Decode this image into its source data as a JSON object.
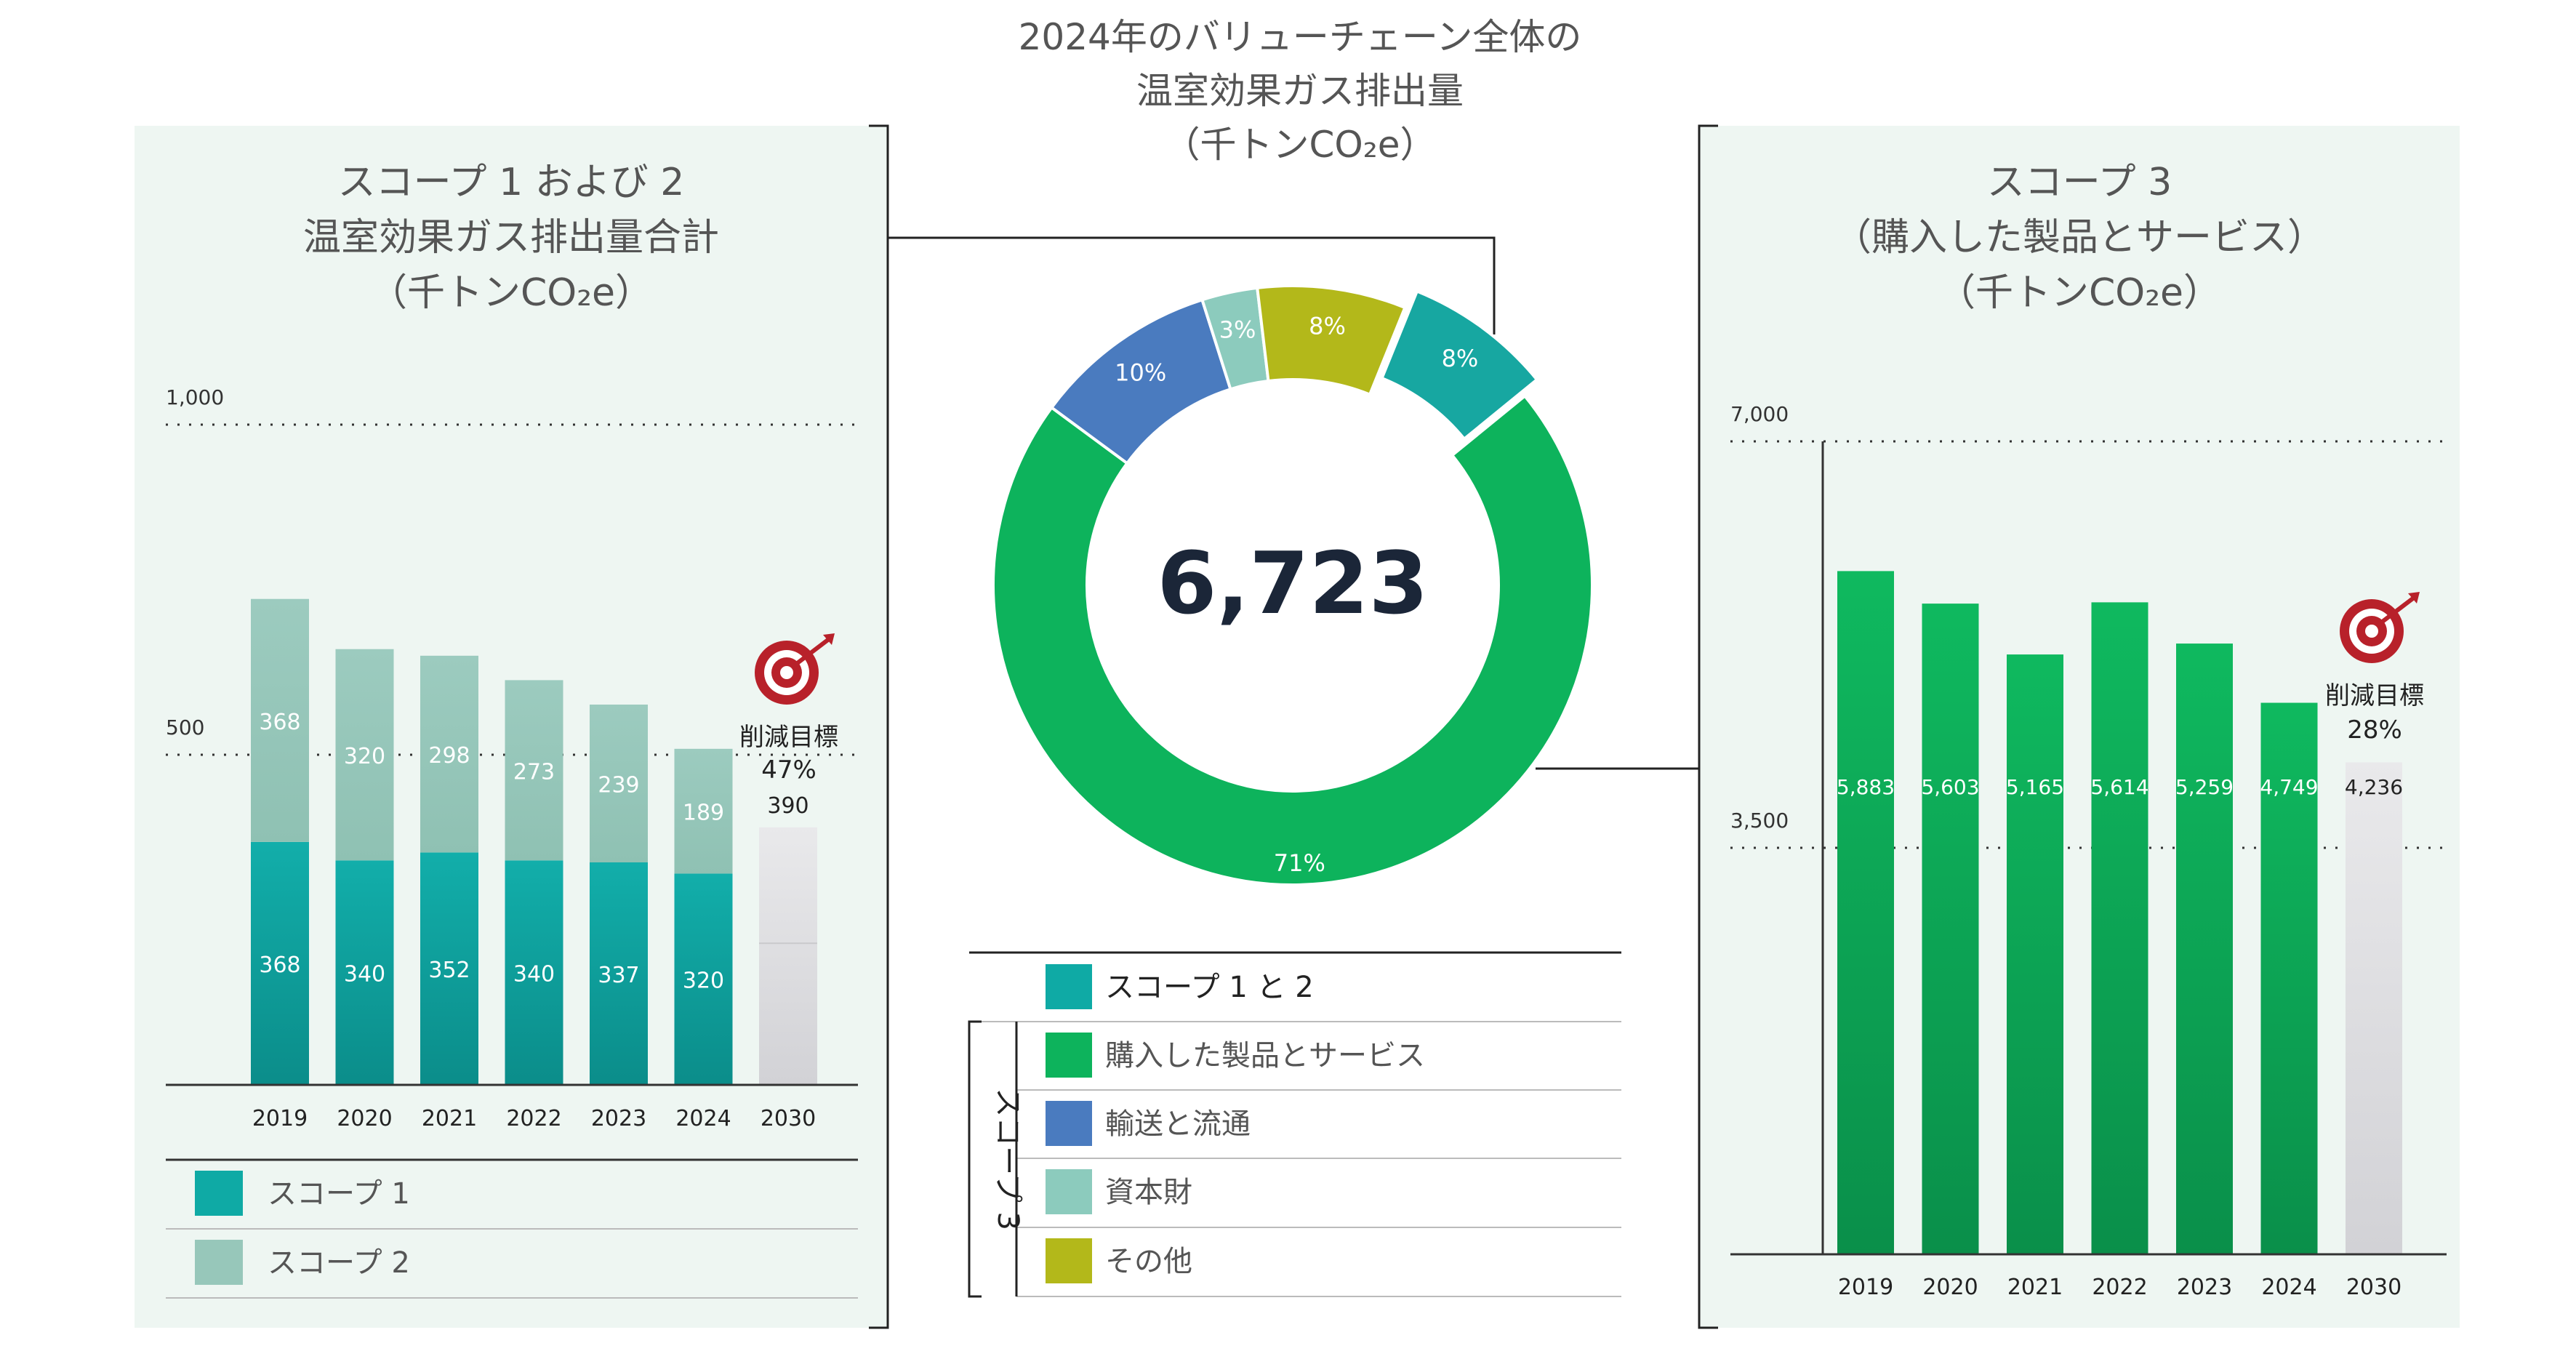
{
  "center": {
    "title_lines": [
      "2024年のバリューチェーン全体の",
      "温室効果ガス排出量",
      "（千トンCO₂e）"
    ],
    "total": "6,723"
  },
  "colors": {
    "panel_bg": "#eef6f2",
    "teal": "#0faaa5",
    "teal_light": "#97c7ba",
    "green": "#0db35c",
    "blue": "#4a7bbf",
    "mint": "#8ccbbd",
    "olive": "#b3b81a",
    "dark_teal": "#17a7a1",
    "target_gray": "#dcdcde",
    "text": "#555555",
    "total_text": "#1b2638"
  },
  "left_legend": [
    {
      "label": "スコープ 1",
      "color": "#0faaa5"
    },
    {
      "label": "スコープ 2",
      "color": "#97c7ba"
    }
  ],
  "right_target": {
    "label": "削減目標",
    "percent": "28%"
  },
  "left_target": {
    "label": "削減目標",
    "percent": "47%"
  },
  "center_legend": {
    "group_label": "スコープ 3",
    "items": [
      {
        "label": "スコープ 1 と 2",
        "color": "#0faaa5"
      },
      {
        "label": "購入した製品とサービス",
        "color": "#0db35c"
      },
      {
        "label": "輸送と流通",
        "color": "#4a7bbf"
      },
      {
        "label": "資本財",
        "color": "#8ccbbd"
      },
      {
        "label": "その他",
        "color": "#b3b81a"
      }
    ]
  },
  "chart_data": [
    {
      "type": "bar",
      "title_lines": [
        "スコープ 1 および 2",
        "温室効果ガス排出量合計",
        "（千トンCO₂e）"
      ],
      "stacked": true,
      "categories": [
        "2019",
        "2020",
        "2021",
        "2022",
        "2023",
        "2024",
        "2030"
      ],
      "series": [
        {
          "name": "スコープ 1",
          "values": [
            368,
            340,
            352,
            340,
            337,
            320,
            null
          ],
          "labels": [
            "368",
            "340",
            "352",
            "340",
            "337",
            "320",
            ""
          ]
        },
        {
          "name": "スコープ 2",
          "values": [
            368,
            320,
            298,
            273,
            239,
            189,
            null
          ],
          "labels": [
            "368",
            "320",
            "298",
            "273",
            "239",
            "189",
            ""
          ]
        }
      ],
      "target": {
        "category": "2030",
        "value": 390,
        "label": "390"
      },
      "gridlines": [
        {
          "value": 1000,
          "label": "1,000"
        },
        {
          "value": 500,
          "label": "500"
        }
      ],
      "ylim": [
        0,
        1000
      ]
    },
    {
      "type": "bar",
      "title_lines": [
        "スコープ 3",
        "（購入した製品とサービス）",
        "（千トンCO₂e）"
      ],
      "categories": [
        "2019",
        "2020",
        "2021",
        "2022",
        "2023",
        "2024",
        "2030"
      ],
      "values": [
        5883,
        5603,
        5165,
        5614,
        5259,
        4749,
        4236
      ],
      "labels": [
        "5,883",
        "5,603",
        "5,165",
        "5,614",
        "5,259",
        "4,749",
        "4,236"
      ],
      "target_category": "2030",
      "gridlines": [
        {
          "value": 7000,
          "label": "7,000"
        },
        {
          "value": 3500,
          "label": "3,500"
        }
      ],
      "ylim": [
        0,
        7000
      ]
    },
    {
      "type": "pie",
      "donut": true,
      "slices": [
        {
          "name": "スコープ 1 と 2",
          "percent": 8,
          "label": "8%",
          "color": "#17a7a1",
          "exploded": true
        },
        {
          "name": "購入した製品とサービス",
          "percent": 71,
          "label": "71%",
          "color": "#0db35c"
        },
        {
          "name": "輸送と流通",
          "percent": 10,
          "label": "10%",
          "color": "#4a7bbf"
        },
        {
          "name": "資本財",
          "percent": 3,
          "label": "3%",
          "color": "#8ccbbd"
        },
        {
          "name": "その他",
          "percent": 8,
          "label": "8%",
          "color": "#b3b81a"
        }
      ]
    }
  ]
}
